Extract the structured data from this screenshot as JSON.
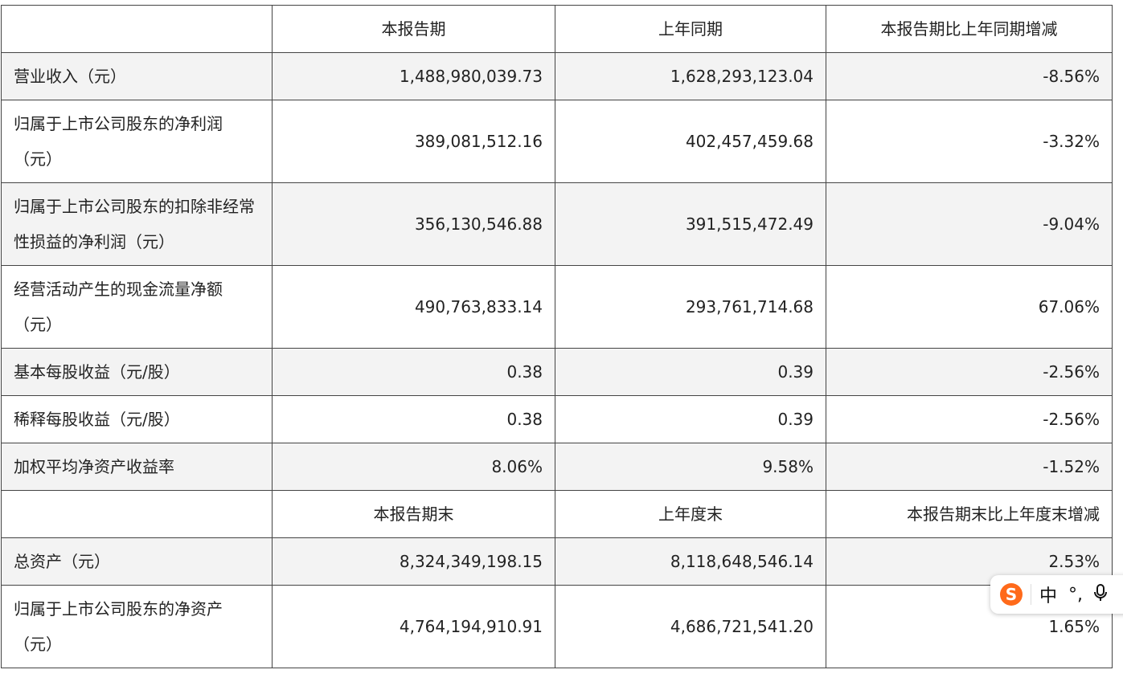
{
  "table": {
    "header1": [
      "",
      "本报告期",
      "上年同期",
      "本报告期比上年同期增减"
    ],
    "rows1": [
      {
        "label": "营业收入（元）",
        "current": "1,488,980,039.73",
        "previous": "1,628,293,123.04",
        "change": "-8.56%"
      },
      {
        "label": "归属于上市公司股东的净利润（元）",
        "current": "389,081,512.16",
        "previous": "402,457,459.68",
        "change": "-3.32%"
      },
      {
        "label": "归属于上市公司股东的扣除非经常性损益的净利润（元）",
        "current": "356,130,546.88",
        "previous": "391,515,472.49",
        "change": "-9.04%"
      },
      {
        "label": "经营活动产生的现金流量净额（元）",
        "current": "490,763,833.14",
        "previous": "293,761,714.68",
        "change": "67.06%"
      },
      {
        "label": "基本每股收益（元/股）",
        "current": "0.38",
        "previous": "0.39",
        "change": "-2.56%"
      },
      {
        "label": "稀释每股收益（元/股）",
        "current": "0.38",
        "previous": "0.39",
        "change": "-2.56%"
      },
      {
        "label": "加权平均净资产收益率",
        "current": "8.06%",
        "previous": "9.58%",
        "change": "-1.52%"
      }
    ],
    "header2": [
      "",
      "本报告期末",
      "上年度末",
      "本报告期末比上年度末增减"
    ],
    "rows2": [
      {
        "label": "总资产（元）",
        "current": "8,324,349,198.15",
        "previous": "8,118,648,546.14",
        "change": "2.53%"
      },
      {
        "label": "归属于上市公司股东的净资产（元）",
        "current": "4,764,194,910.91",
        "previous": "4,686,721,541.20",
        "change": "1.65%"
      }
    ]
  },
  "ime_toolbar": {
    "logo": "S",
    "lang": "中",
    "punct": "°,",
    "icons": [
      "sogou-logo-icon",
      "microphone-icon"
    ],
    "logo_color": "#ff6a1a"
  }
}
